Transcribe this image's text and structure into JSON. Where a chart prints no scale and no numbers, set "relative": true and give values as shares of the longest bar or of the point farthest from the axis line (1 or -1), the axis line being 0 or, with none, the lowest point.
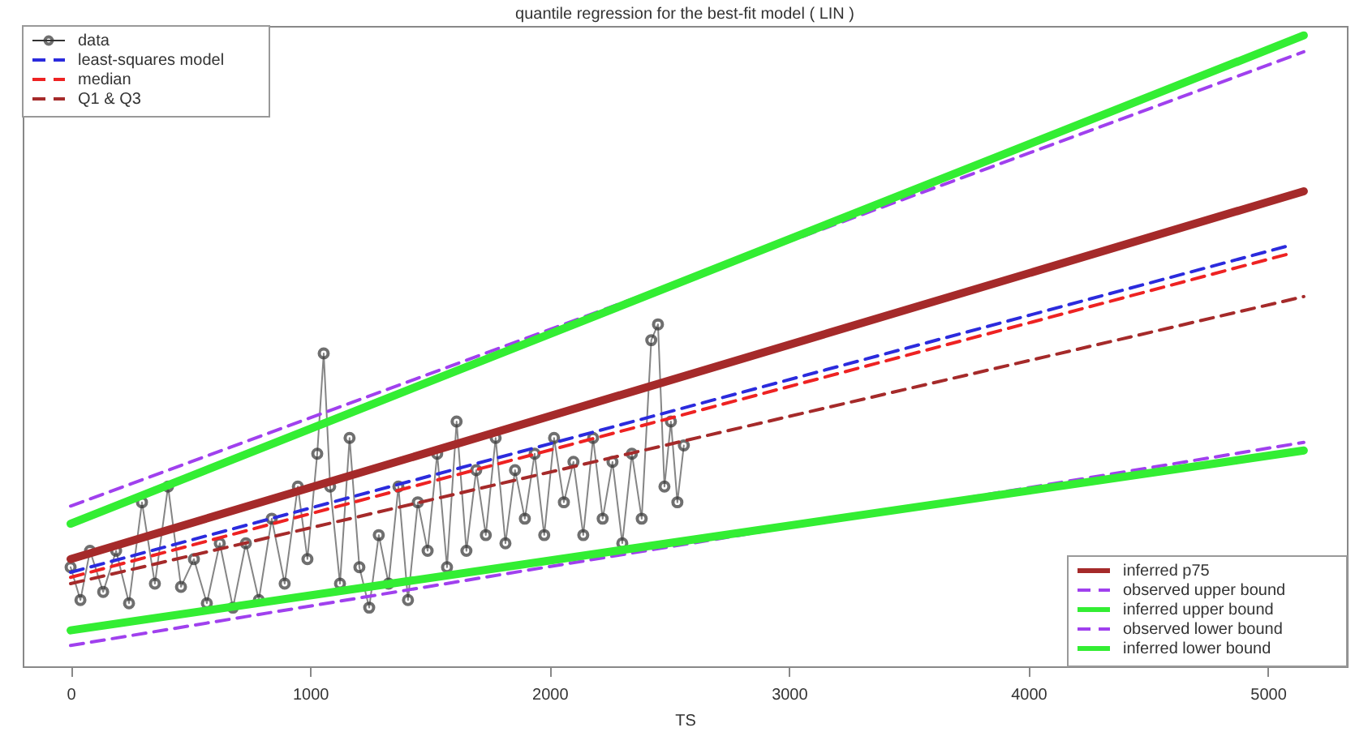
{
  "chart_data": {
    "type": "line",
    "title": "quantile regression for the best-fit model ( LIN )",
    "xlabel": "TS",
    "xlim": [
      -200,
      5330
    ],
    "xticks": [
      0,
      1000,
      2000,
      3000,
      4000,
      5000
    ],
    "relative": true,
    "legend": [
      "top left",
      "bottom right"
    ],
    "series": [
      {
        "name": "data",
        "color": "#333333",
        "marker": "circle",
        "line_style": "solid",
        "x": [
          0,
          41,
          81,
          136,
          190,
          244,
          298,
          352,
          407,
          461,
          515,
          569,
          623,
          678,
          732,
          786,
          840,
          894,
          949,
          989,
          1030,
          1057,
          1084,
          1125,
          1165,
          1206,
          1247,
          1287,
          1328,
          1369,
          1409,
          1450,
          1491,
          1531,
          1572,
          1612,
          1653,
          1694,
          1734,
          1775,
          1816,
          1856,
          1897,
          1938,
          1978,
          2019,
          2060,
          2100,
          2141,
          2182,
          2222,
          2263,
          2304,
          2344,
          2385,
          2425,
          2453,
          2480,
          2507,
          2534,
          2561
        ],
        "values": [
          0.157,
          0.105,
          0.183,
          0.118,
          0.183,
          0.1,
          0.26,
          0.131,
          0.285,
          0.126,
          0.17,
          0.1,
          0.195,
          0.093,
          0.195,
          0.105,
          0.234,
          0.131,
          0.285,
          0.17,
          0.337,
          0.496,
          0.285,
          0.131,
          0.362,
          0.157,
          0.093,
          0.208,
          0.131,
          0.285,
          0.105,
          0.26,
          0.183,
          0.337,
          0.157,
          0.388,
          0.183,
          0.311,
          0.208,
          0.362,
          0.195,
          0.311,
          0.234,
          0.337,
          0.208,
          0.362,
          0.26,
          0.324,
          0.208,
          0.362,
          0.234,
          0.324,
          0.195,
          0.337,
          0.234,
          0.517,
          0.542,
          0.285,
          0.388,
          0.26,
          0.35
        ]
      },
      {
        "name": "least-squares model",
        "color": "#2b2bdd",
        "line_style": "dashed",
        "x": [
          0,
          5080
        ],
        "values": [
          0.149,
          0.666
        ]
      },
      {
        "name": "median",
        "color": "#ee2222",
        "line_style": "dashed",
        "x": [
          0,
          5080
        ],
        "values": [
          0.141,
          0.653
        ]
      },
      {
        "name": "Q1 & Q3",
        "color": "#a52a2a",
        "line_style": "dashed",
        "x": [
          0,
          5150
        ],
        "values": [
          0.131,
          0.586
        ]
      },
      {
        "name": "inferred p75",
        "color": "#a52a2a",
        "line_style": "solid",
        "x": [
          0,
          5150
        ],
        "values": [
          0.17,
          0.753
        ]
      },
      {
        "name": "observed upper bound",
        "color": "#a040ee",
        "line_style": "dashed",
        "x": [
          0,
          5150
        ],
        "values": [
          0.254,
          0.974
        ]
      },
      {
        "name": "inferred upper bound",
        "color": "#33ee33",
        "line_style": "solid",
        "x": [
          0,
          5150
        ],
        "values": [
          0.226,
          1.0
        ]
      },
      {
        "name": "observed lower bound",
        "color": "#a040ee",
        "line_style": "dashed",
        "x": [
          0,
          5150
        ],
        "values": [
          0.033,
          0.355
        ]
      },
      {
        "name": "inferred lower bound",
        "color": "#33ee33",
        "line_style": "solid",
        "x": [
          0,
          5150
        ],
        "values": [
          0.057,
          0.342
        ]
      }
    ]
  }
}
